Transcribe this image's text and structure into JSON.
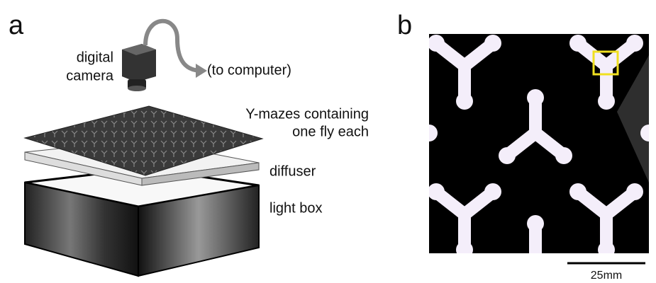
{
  "panel_a": {
    "label": "a",
    "camera_label": [
      "digital",
      "camera"
    ],
    "computer_label": "(to computer)",
    "mazes_label": [
      "Y-mazes containing",
      "one fly each"
    ],
    "diffuser_label": "diffuser",
    "lightbox_label": "light box"
  },
  "panel_b": {
    "label": "b",
    "scale_bar_label": "25mm"
  }
}
